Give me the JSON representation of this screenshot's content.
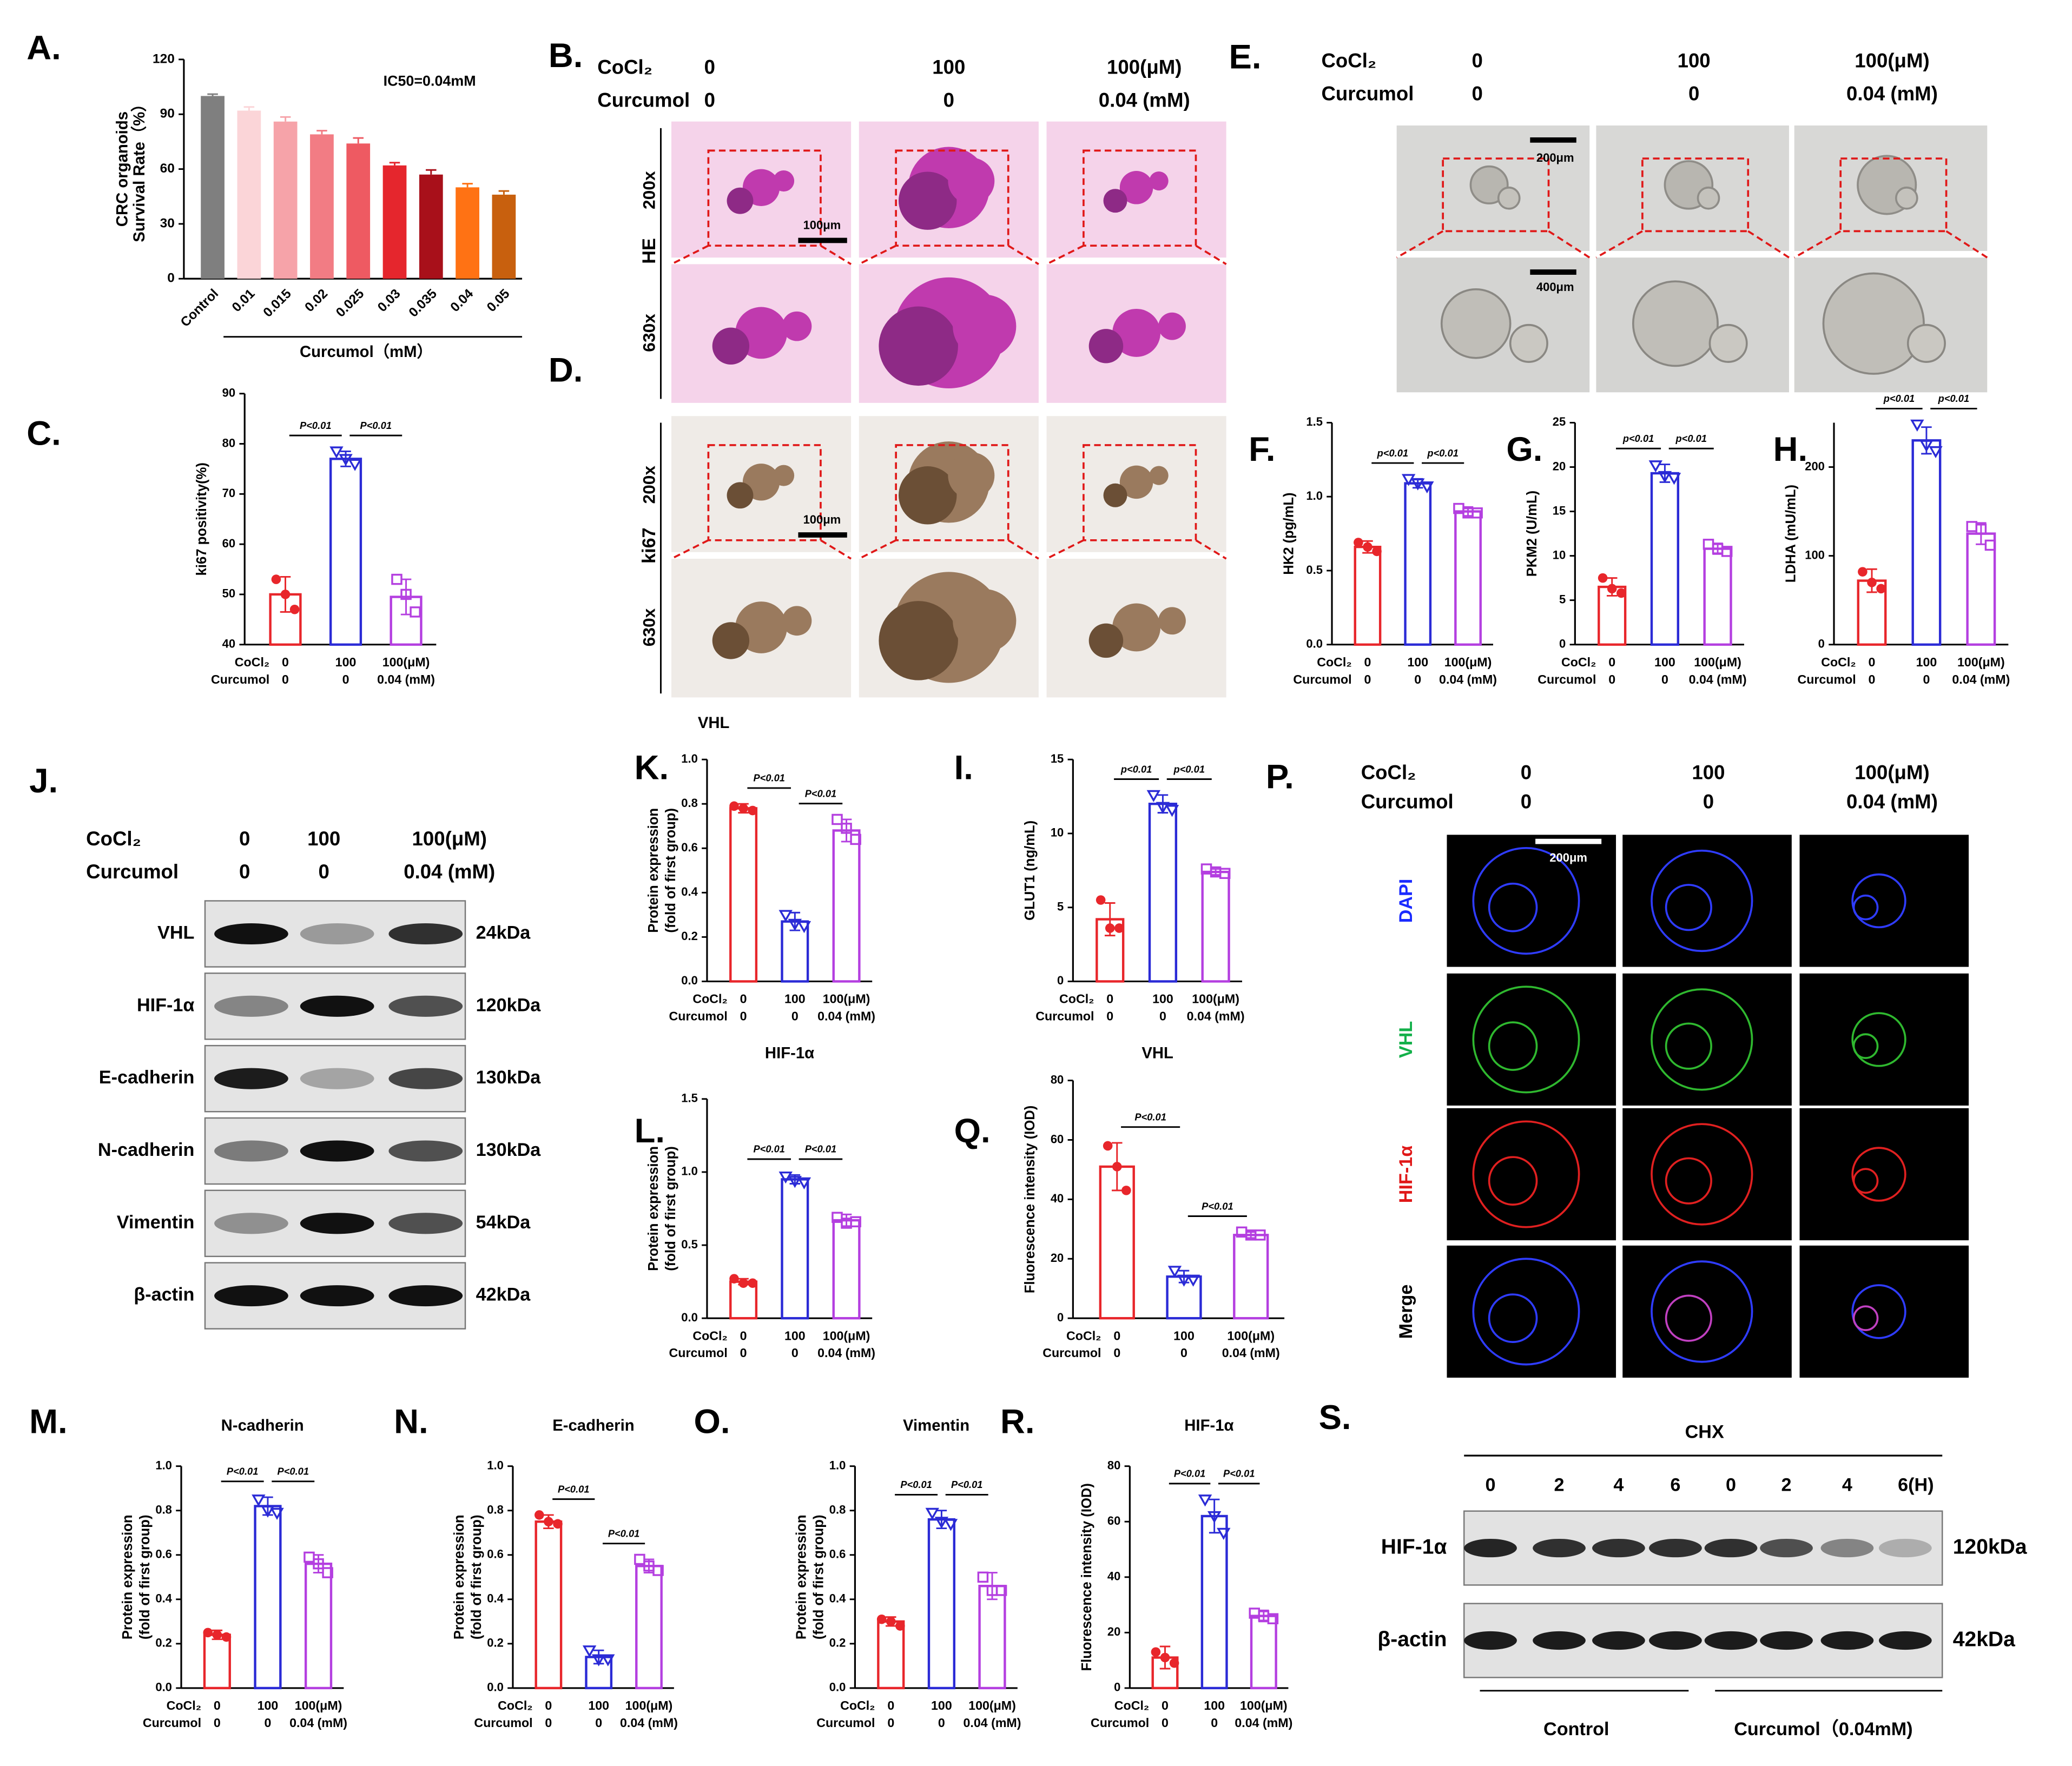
{
  "chart_data": [
    {
      "type": "bar",
      "panel": "A.",
      "ylabel": [
        "CRC organoids",
        "Survival Rate（%）"
      ],
      "xlabel": "Curcumol（mM）",
      "annotation": "IC50=0.04mM",
      "categories": [
        "Control",
        "0.01",
        "0.015",
        "0.02",
        "0.025",
        "0.03",
        "0.035",
        "0.04",
        "0.05"
      ],
      "values": [
        100,
        92,
        86,
        79,
        74,
        62,
        57,
        50,
        46
      ],
      "errors": [
        1,
        2,
        2.5,
        2,
        3,
        1.5,
        2.5,
        2,
        2
      ],
      "colors": [
        "#7f7f7f",
        "#fbd5d8",
        "#f6a3a9",
        "#f27c84",
        "#ee5a62",
        "#e5262d",
        "#a8101a",
        "#ff7214",
        "#c8600e"
      ],
      "ylim": [
        0,
        120
      ],
      "yticks": [
        0,
        30,
        60,
        90,
        120
      ]
    },
    {
      "type": "bar",
      "panel": "C.",
      "ylabel": "ki67 positivity(%)",
      "row_labels": [
        "CoCl₂",
        "Curcumol"
      ],
      "categories": [
        "0",
        "100",
        "100(μM)"
      ],
      "categories_2": [
        "0",
        "0",
        "0.04 (mM)"
      ],
      "values": [
        50,
        77,
        49.5
      ],
      "errors": [
        3.5,
        1.5,
        3.5
      ],
      "points": [
        [
          53,
          50,
          47
        ],
        [
          78.5,
          77,
          76
        ],
        [
          53,
          50,
          46.5
        ]
      ],
      "colors": [
        "#e8262b",
        "#2b2bd6",
        "#b43fe0"
      ],
      "significance": [
        "P<0.01",
        "P<0.01"
      ],
      "ylim": [
        40,
        90
      ],
      "yticks": [
        40,
        50,
        60,
        70,
        80,
        90
      ]
    },
    {
      "type": "bar",
      "panel": "F.",
      "ylabel": "HK2 (pg/mL)",
      "row_labels": [
        "CoCl₂",
        "Curcumol"
      ],
      "categories": [
        "0",
        "100",
        "100(μM)"
      ],
      "categories_2": [
        "0",
        "0",
        "0.04 (mM)"
      ],
      "values": [
        0.66,
        1.09,
        0.9
      ],
      "errors": [
        0.04,
        0.03,
        0.03
      ],
      "points": [
        [
          0.69,
          0.66,
          0.63
        ],
        [
          1.12,
          1.09,
          1.07
        ],
        [
          0.92,
          0.89,
          0.89
        ]
      ],
      "colors": [
        "#e8262b",
        "#2b2bd6",
        "#b43fe0"
      ],
      "significance": [
        "p<0.01",
        "p<0.01"
      ],
      "ylim": [
        0,
        1.5
      ],
      "yticks": [
        {
          "value": 0,
          "label": "0.0"
        },
        0.5,
        {
          "value": 1,
          "label": "1.0"
        },
        1.5
      ]
    },
    {
      "type": "bar",
      "panel": "G.",
      "ylabel": "PKM2 (U/mL)",
      "row_labels": [
        "CoCl₂",
        "Curcumol"
      ],
      "categories": [
        "0",
        "100",
        "100(μM)"
      ],
      "categories_2": [
        "0",
        "0",
        "0.04 (mM)"
      ],
      "values": [
        6.5,
        19.3,
        10.8
      ],
      "errors": [
        1,
        1,
        0.6
      ],
      "points": [
        [
          7.5,
          6.3,
          5.8
        ],
        [
          20.2,
          19,
          18.8
        ],
        [
          11.3,
          10.8,
          10.5
        ]
      ],
      "colors": [
        "#e8262b",
        "#2b2bd6",
        "#b43fe0"
      ],
      "significance": [
        "p<0.01",
        "p<0.01"
      ],
      "ylim": [
        0,
        25
      ],
      "yticks": [
        0,
        5,
        10,
        15,
        20,
        25
      ]
    },
    {
      "type": "bar",
      "panel": "H.",
      "ylabel": "LDHA (mU/mL)",
      "row_labels": [
        "CoCl₂",
        "Curcumol"
      ],
      "categories": [
        "0",
        "100",
        "100(μM)"
      ],
      "categories_2": [
        "0",
        "0",
        "0.04 (mM)"
      ],
      "values": [
        72,
        230,
        125
      ],
      "errors": [
        13,
        15,
        12
      ],
      "points": [
        [
          82,
          70,
          63
        ],
        [
          248,
          225,
          218
        ],
        [
          133,
          130,
          112
        ]
      ],
      "colors": [
        "#e8262b",
        "#2b2bd6",
        "#b43fe0"
      ],
      "significance": [
        "p<0.01",
        "p<0.01"
      ],
      "ylim": [
        0,
        250
      ],
      "yticks": [
        0,
        100,
        200
      ]
    },
    {
      "type": "bar",
      "panel": "K.",
      "ylabel": [
        "Protein expression",
        "(fold of first group)"
      ],
      "xlabel": "HIF-1α",
      "row_labels": [
        "CoCl₂",
        "Curcumol"
      ],
      "categories": [
        "0",
        "100",
        "100(μM)"
      ],
      "categories_2": [
        "0",
        "0",
        "0.04 (mM)"
      ],
      "values": [
        0.78,
        0.27,
        0.68
      ],
      "errors": [
        0.02,
        0.04,
        0.05
      ],
      "points": [
        [
          0.79,
          0.78,
          0.77
        ],
        [
          0.3,
          0.26,
          0.25
        ],
        [
          0.73,
          0.69,
          0.64
        ]
      ],
      "colors": [
        "#e8262b",
        "#2b2bd6",
        "#b43fe0"
      ],
      "significance": [
        "P<0.01",
        "P<0.01"
      ],
      "ylim": [
        0,
        1
      ],
      "yticks": [
        {
          "value": 0,
          "label": "0.0"
        },
        0.2,
        0.4,
        0.6,
        0.8,
        {
          "value": 1,
          "label": "1.0"
        }
      ]
    },
    {
      "type": "bar",
      "panel": "I.",
      "ylabel": "GLUT1 (ng/mL)",
      "xlabel": "VHL",
      "row_labels": [
        "CoCl₂",
        "Curcumol"
      ],
      "categories": [
        "0",
        "100",
        "100(μM)"
      ],
      "categories_2": [
        "0",
        "0",
        "0.04 (mM)"
      ],
      "values": [
        4.2,
        12,
        7.4
      ],
      "errors": [
        1.1,
        0.6,
        0.2
      ],
      "points": [
        [
          5.5,
          3.6,
          3.6
        ],
        [
          12.6,
          11.8,
          11.6
        ],
        [
          7.6,
          7.4,
          7.3
        ]
      ],
      "colors": [
        "#e8262b",
        "#2b2bd6",
        "#b43fe0"
      ],
      "significance": [
        "p<0.01",
        "p<0.01"
      ],
      "ylim": [
        0,
        15
      ],
      "yticks": [
        0,
        5,
        10,
        15
      ]
    },
    {
      "type": "bar",
      "panel": "L.",
      "ylabel": [
        "Protein expression",
        "(fold of first group)"
      ],
      "row_labels": [
        "CoCl₂",
        "Curcumol"
      ],
      "categories": [
        "0",
        "100",
        "100(μM)"
      ],
      "categories_2": [
        "0",
        "0",
        "0.04 (mM)"
      ],
      "values": [
        0.25,
        0.95,
        0.67
      ],
      "errors": [
        0.02,
        0.03,
        0.04
      ],
      "points": [
        [
          0.27,
          0.24,
          0.24
        ],
        [
          0.97,
          0.94,
          0.93
        ],
        [
          0.69,
          0.65,
          0.66
        ]
      ],
      "colors": [
        "#e8262b",
        "#2b2bd6",
        "#b43fe0"
      ],
      "significance": [
        "P<0.01",
        "P<0.01"
      ],
      "ylim": [
        0,
        1.5
      ],
      "yticks": [
        {
          "value": 0,
          "label": "0.0"
        },
        0.5,
        {
          "value": 1,
          "label": "1.0"
        },
        1.5
      ]
    },
    {
      "type": "bar",
      "panel": "Q.",
      "ylabel": "Fluorescence intensity (IOD)",
      "row_labels": [
        "CoCl₂",
        "Curcumol"
      ],
      "categories": [
        "0",
        "100",
        "100(μM)"
      ],
      "categories_2": [
        "0",
        "0",
        "0.04 (mM)"
      ],
      "values": [
        51,
        14,
        28
      ],
      "errors": [
        8,
        2,
        1
      ],
      "points": [
        [
          58,
          51,
          43
        ],
        [
          16,
          13,
          13
        ],
        [
          29,
          28,
          28
        ]
      ],
      "colors": [
        "#e8262b",
        "#2b2bd6",
        "#b43fe0"
      ],
      "significance": [
        "P<0.01",
        "P<0.01"
      ],
      "ylim": [
        0,
        80
      ],
      "yticks": [
        0,
        20,
        40,
        60,
        80
      ]
    },
    {
      "type": "bar",
      "panel": "M.",
      "title": "N-cadherin",
      "ylabel": [
        "Protein expression",
        "(fold of first group)"
      ],
      "row_labels": [
        "CoCl₂",
        "Curcumol"
      ],
      "categories": [
        "0",
        "100",
        "100(μM)"
      ],
      "categories_2": [
        "0",
        "0",
        "0.04 (mM)"
      ],
      "values": [
        0.24,
        0.82,
        0.56
      ],
      "errors": [
        0.02,
        0.04,
        0.04
      ],
      "points": [
        [
          0.25,
          0.24,
          0.23
        ],
        [
          0.85,
          0.8,
          0.79
        ],
        [
          0.59,
          0.56,
          0.52
        ]
      ],
      "colors": [
        "#e8262b",
        "#2b2bd6",
        "#b43fe0"
      ],
      "significance": [
        "P<0.01",
        "P<0.01"
      ],
      "ylim": [
        0,
        1
      ],
      "yticks": [
        {
          "value": 0,
          "label": "0.0"
        },
        0.2,
        0.4,
        0.6,
        0.8,
        {
          "value": 1,
          "label": "1.0"
        }
      ]
    },
    {
      "type": "bar",
      "panel": "N.",
      "title": "E-cadherin",
      "ylabel": [
        "Protein expression",
        "(fold of first group)"
      ],
      "row_labels": [
        "CoCl₂",
        "Curcumol"
      ],
      "categories": [
        "0",
        "100",
        "100(μM)"
      ],
      "categories_2": [
        "0",
        "0",
        "0.04 (mM)"
      ],
      "values": [
        0.75,
        0.14,
        0.55
      ],
      "errors": [
        0.03,
        0.03,
        0.03
      ],
      "points": [
        [
          0.78,
          0.75,
          0.74
        ],
        [
          0.17,
          0.13,
          0.13
        ],
        [
          0.58,
          0.55,
          0.53
        ]
      ],
      "colors": [
        "#e8262b",
        "#2b2bd6",
        "#b43fe0"
      ],
      "significance": [
        "P<0.01",
        "P<0.01"
      ],
      "ylim": [
        0,
        1
      ],
      "yticks": [
        {
          "value": 0,
          "label": "0.0"
        },
        0.2,
        0.4,
        0.6,
        0.8,
        {
          "value": 1,
          "label": "1.0"
        }
      ]
    },
    {
      "type": "bar",
      "panel": "O.",
      "title": "Vimentin",
      "ylabel": [
        "Protein expression",
        "(fold of first group)"
      ],
      "row_labels": [
        "CoCl₂",
        "Curcumol"
      ],
      "categories": [
        "0",
        "100",
        "100(μM)"
      ],
      "categories_2": [
        "0",
        "0",
        "0.04 (mM)"
      ],
      "values": [
        0.3,
        0.76,
        0.46
      ],
      "errors": [
        0.02,
        0.04,
        0.06
      ],
      "points": [
        [
          0.31,
          0.3,
          0.28
        ],
        [
          0.79,
          0.75,
          0.74
        ],
        [
          0.5,
          0.44,
          0.44
        ]
      ],
      "colors": [
        "#e8262b",
        "#2b2bd6",
        "#b43fe0"
      ],
      "significance": [
        "P<0.01",
        "P<0.01"
      ],
      "ylim": [
        0,
        1
      ],
      "yticks": [
        {
          "value": 0,
          "label": "0.0"
        },
        0.2,
        0.4,
        0.6,
        0.8,
        {
          "value": 1,
          "label": "1.0"
        }
      ]
    },
    {
      "type": "bar",
      "panel": "R.",
      "title": "HIF-1α",
      "ylabel": "Fluorescence intensity (IOD)",
      "row_labels": [
        "CoCl₂",
        "Curcumol"
      ],
      "categories": [
        "0",
        "100",
        "100(μM)"
      ],
      "categories_2": [
        "0",
        "0",
        "0.04 (mM)"
      ],
      "values": [
        11,
        62,
        26
      ],
      "errors": [
        4,
        6,
        2
      ],
      "points": [
        [
          13,
          11,
          9
        ],
        [
          68,
          62,
          56
        ],
        [
          27,
          26,
          25
        ]
      ],
      "colors": [
        "#e8262b",
        "#2b2bd6",
        "#b43fe0"
      ],
      "significance": [
        "P<0.01",
        "P<0.01"
      ],
      "ylim": [
        0,
        80
      ],
      "yticks": [
        0,
        20,
        40,
        60,
        80
      ]
    }
  ],
  "panels": {
    "B": {
      "letter": "B.",
      "header": [
        [
          "CoCl₂",
          "0",
          "100",
          "100(μM)"
        ],
        [
          "Curcumol",
          "0",
          "0",
          "0.04 (mM)"
        ]
      ],
      "stain": "HE",
      "magnifications": [
        "200x",
        "630x"
      ],
      "scale_bar": "100μm"
    },
    "D": {
      "letter": "D.",
      "stain": "ki67",
      "magnifications": [
        "200x",
        "630x"
      ],
      "scale_bar": "100μm",
      "caption": "VHL"
    },
    "E": {
      "letter": "E.",
      "header": [
        [
          "CoCl₂",
          "0",
          "100",
          "100(μM)"
        ],
        [
          "Curcumol",
          "0",
          "0",
          "0.04 (mM)"
        ]
      ],
      "scale_bars": [
        "200μm",
        "400μm"
      ]
    },
    "J": {
      "letter": "J.",
      "header": [
        [
          "CoCl₂",
          "0",
          "100",
          "100(μM)"
        ],
        [
          "Curcumol",
          "0",
          "0",
          "0.04 (mM)"
        ]
      ],
      "bands": [
        {
          "name": "VHL",
          "size": "24kDa"
        },
        {
          "name": "HIF-1α",
          "size": "120kDa"
        },
        {
          "name": "E-cadherin",
          "size": "130kDa"
        },
        {
          "name": "N-cadherin",
          "size": "130kDa"
        },
        {
          "name": "Vimentin",
          "size": "54kDa"
        },
        {
          "name": "β-actin",
          "size": "42kDa"
        }
      ]
    },
    "P": {
      "letter": "P.",
      "header": [
        [
          "CoCl₂",
          "0",
          "100",
          "100(μM)"
        ],
        [
          "Curcumol",
          "0",
          "0",
          "0.04 (mM)"
        ]
      ],
      "channels": [
        "DAPI",
        "VHL",
        "HIF-1α",
        "Merge"
      ],
      "scale_bar": "200μm"
    },
    "S": {
      "letter": "S.",
      "treatment": "CHX",
      "lanes": [
        "0",
        "2",
        "4",
        "6",
        "0",
        "2",
        "4",
        "6(H)"
      ],
      "bands": [
        {
          "name": "HIF-1α",
          "size": "120kDa"
        },
        {
          "name": "β-actin",
          "size": "42kDa"
        }
      ],
      "groups": [
        "Control",
        "Curcumol（0.04mM)"
      ]
    }
  }
}
